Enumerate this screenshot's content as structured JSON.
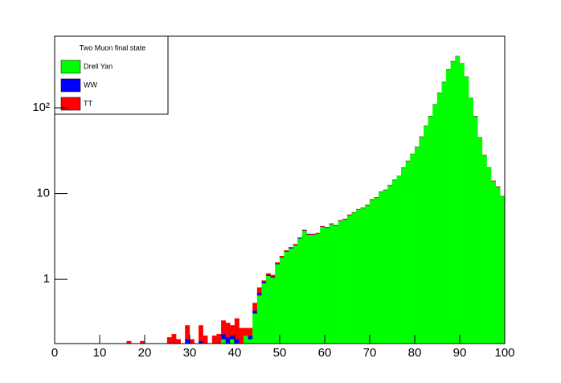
{
  "chart_data": {
    "type": "histogram",
    "stacked": true,
    "log_y": true,
    "legend_title": "Two Muon final state",
    "legend_position": "top-left",
    "bins": [
      0,
      1,
      2,
      3,
      4,
      5,
      6,
      7,
      8,
      9,
      10,
      11,
      12,
      13,
      14,
      15,
      16,
      17,
      18,
      19,
      20,
      21,
      22,
      23,
      24,
      25,
      26,
      27,
      28,
      29,
      30,
      31,
      32,
      33,
      34,
      35,
      36,
      37,
      38,
      39,
      40,
      41,
      42,
      43,
      44,
      45,
      46,
      47,
      48,
      49,
      50,
      51,
      52,
      53,
      54,
      55,
      56,
      57,
      58,
      59,
      60,
      61,
      62,
      63,
      64,
      65,
      66,
      67,
      68,
      69,
      70,
      71,
      72,
      73,
      74,
      75,
      76,
      77,
      78,
      79,
      80,
      81,
      82,
      83,
      84,
      85,
      86,
      87,
      88,
      89,
      90,
      91,
      92,
      93,
      94,
      95,
      96,
      97,
      98,
      99,
      100
    ],
    "series": [
      {
        "name": "Drell Yan",
        "color": "#00ff00",
        "values": [
          0,
          0,
          0,
          0,
          0,
          0,
          0,
          0,
          0,
          0,
          0,
          0,
          0,
          0,
          0,
          0,
          0,
          0,
          0,
          0,
          0,
          0,
          0,
          0,
          0,
          0,
          0,
          0,
          0,
          0,
          0,
          0,
          0,
          0,
          0,
          0,
          0,
          0.2,
          0,
          0.2,
          0,
          0,
          0.22,
          0.2,
          0.4,
          0.65,
          0.9,
          1.1,
          1.05,
          1.5,
          1.8,
          2.1,
          2.3,
          2.5,
          3.0,
          3.7,
          3.3,
          3.3,
          3.4,
          4.1,
          4.0,
          4.4,
          4.2,
          4.8,
          5.0,
          5.6,
          6.0,
          6.5,
          6.8,
          7.3,
          8.5,
          9.0,
          10.5,
          11,
          12.5,
          14.5,
          16,
          20,
          24,
          29,
          35,
          46,
          62,
          80,
          110,
          150,
          200,
          280,
          350,
          400,
          330,
          230,
          130,
          80,
          45,
          28,
          20,
          14,
          12,
          9.3
        ]
      },
      {
        "name": "WW",
        "color": "#0000ff",
        "values": [
          0,
          0,
          0,
          0,
          0,
          0,
          0,
          0,
          0,
          0,
          0,
          0,
          0,
          0,
          0,
          0,
          0,
          0,
          0,
          0,
          0,
          0,
          0,
          0,
          0,
          0,
          0,
          0,
          0,
          0.2,
          0,
          0,
          0.19,
          0,
          0,
          0,
          0,
          0.03,
          0.21,
          0.02,
          0.2,
          0,
          0,
          0.02,
          0.03,
          0.05,
          0.03,
          0.03,
          0.03,
          0.03,
          0.03,
          0.03,
          0.03,
          0.03,
          0.03,
          0.03,
          0.03,
          0.03,
          0.03,
          0.03,
          0.03,
          0.03,
          0.03,
          0.03,
          0.03,
          0.03,
          0.03,
          0.03,
          0.03,
          0.03,
          0.03,
          0.03,
          0.03,
          0.03,
          0.03,
          0.03,
          0.03,
          0.03,
          0.03,
          0.03,
          0.03,
          0.03,
          0.03,
          0.03,
          0.03,
          0.03,
          0.03,
          0.03,
          0.03,
          0.03,
          0.03,
          0.03,
          0.03,
          0.03,
          0.03,
          0.03,
          0.03,
          0.03,
          0.03,
          0.03
        ]
      },
      {
        "name": "TT",
        "color": "#ff0000",
        "values": [
          0,
          0,
          0,
          0,
          0,
          0,
          0,
          0,
          0,
          0,
          0,
          0,
          0,
          0,
          0,
          0,
          0.19,
          0,
          0,
          0.19,
          0,
          0,
          0,
          0,
          0,
          0.21,
          0.23,
          0.2,
          0,
          0.09,
          0.2,
          0,
          0.1,
          0.22,
          0,
          0.22,
          0.23,
          0.1,
          0.1,
          0.07,
          0.15,
          0.27,
          0.05,
          0.05,
          0.1,
          0.1,
          0.04,
          0.04,
          0.04,
          0.04,
          0.04,
          0.04,
          0.04,
          0.04,
          0.04,
          0.04,
          0.04,
          0.04,
          0.04,
          0.04,
          0.04,
          0.04,
          0.04,
          0.04,
          0.04,
          0.04,
          0.04,
          0.04,
          0.04,
          0.04,
          0.04,
          0.04,
          0.04,
          0.04,
          0.04,
          0.04,
          0.04,
          0.04,
          0.04,
          0.04,
          0.04,
          0.04,
          0.04,
          0.04,
          0.04,
          0.04,
          0.04,
          0.04,
          0.04,
          0.04,
          0.04,
          0.04,
          0.04,
          0.04,
          0.04,
          0.04,
          0.04,
          0.04,
          0.04,
          0.04,
          0.04,
          0.04
        ]
      }
    ],
    "xlim": [
      0,
      100
    ],
    "xticks": [
      0,
      10,
      20,
      30,
      40,
      50,
      60,
      70,
      80,
      90,
      100
    ],
    "ylim": [
      0.178,
      685
    ],
    "yticks": [
      1,
      10,
      {
        "value": 100,
        "label": "10²"
      }
    ]
  }
}
